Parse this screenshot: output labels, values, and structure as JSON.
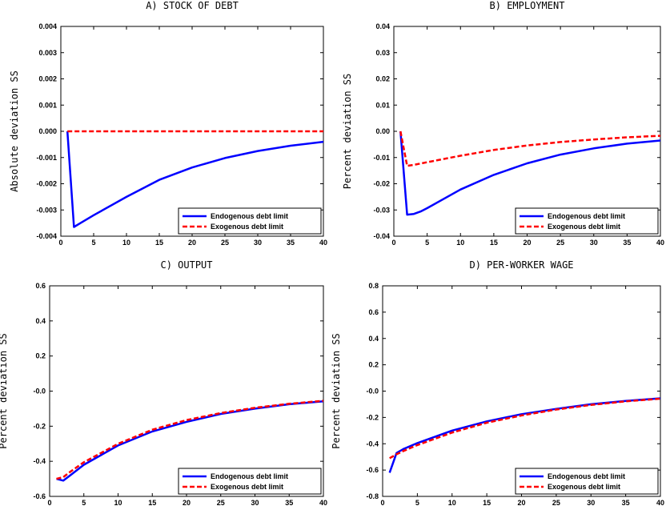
{
  "chart_data": [
    {
      "type": "line",
      "title": "A) STOCK OF DEBT",
      "ylabel": "Absolute deviation SS",
      "xlim": [
        0,
        40
      ],
      "ylim": [
        -0.004,
        0.004
      ],
      "xticks": [
        "0",
        "5",
        "10",
        "15",
        "20",
        "25",
        "30",
        "35",
        "40"
      ],
      "yticks": [
        "-0.004",
        "-0.003",
        "-0.002",
        "-0.001",
        "0.000",
        "0.001",
        "0.002",
        "0.003",
        "0.004"
      ],
      "legend": "bottom-right",
      "series": [
        {
          "name": "Endogenous debt limit",
          "color": "#0000ff",
          "dash": "solid",
          "x": [
            1,
            2,
            3,
            5,
            10,
            15,
            20,
            25,
            30,
            35,
            40
          ],
          "y": [
            0.0,
            -0.00365,
            -0.0035,
            -0.0032,
            -0.0025,
            -0.00185,
            -0.00138,
            -0.00102,
            -0.00075,
            -0.00055,
            -0.0004
          ]
        },
        {
          "name": "Exogenous debt limit",
          "color": "#ff0000",
          "dash": "dashed",
          "x": [
            1,
            40
          ],
          "y": [
            0.0,
            0.0
          ]
        }
      ]
    },
    {
      "type": "line",
      "title": "B) EMPLOYMENT",
      "ylabel": "Percent deviation SS",
      "xlim": [
        0,
        40
      ],
      "ylim": [
        -0.04,
        0.04
      ],
      "xticks": [
        "0",
        "5",
        "10",
        "15",
        "20",
        "25",
        "30",
        "35",
        "40"
      ],
      "yticks": [
        "-0.04",
        "-0.03",
        "-0.02",
        "-0.01",
        "0.00",
        "0.01",
        "0.02",
        "0.03",
        "0.04"
      ],
      "legend": "bottom-right",
      "series": [
        {
          "name": "Endogenous debt limit",
          "color": "#0000ff",
          "dash": "solid",
          "x": [
            1,
            2,
            3,
            4,
            5,
            10,
            15,
            20,
            25,
            30,
            35,
            40
          ],
          "y": [
            0.0,
            -0.0318,
            -0.0315,
            -0.0306,
            -0.0293,
            -0.0222,
            -0.0166,
            -0.0122,
            -0.0089,
            -0.0065,
            -0.0047,
            -0.0035
          ]
        },
        {
          "name": "Exogenous debt limit",
          "color": "#ff0000",
          "dash": "dashed",
          "x": [
            1,
            2,
            3,
            5,
            10,
            15,
            20,
            25,
            30,
            35,
            40
          ],
          "y": [
            0.0,
            -0.0132,
            -0.0128,
            -0.0118,
            -0.0093,
            -0.0071,
            -0.0054,
            -0.0041,
            -0.0031,
            -0.0023,
            -0.0017
          ]
        }
      ]
    },
    {
      "type": "line",
      "title": "C) OUTPUT",
      "ylabel": "Percent deviation SS",
      "xlim": [
        0,
        40
      ],
      "ylim": [
        -0.6,
        0.6
      ],
      "xticks": [
        "0",
        "5",
        "10",
        "15",
        "20",
        "25",
        "30",
        "35",
        "40"
      ],
      "yticks": [
        "-0.6",
        "-0.4",
        "-0.2",
        "-0.0",
        "0.2",
        "0.4",
        "0.6"
      ],
      "legend": "bottom-right",
      "series": [
        {
          "name": "Endogenous debt limit",
          "color": "#0000ff",
          "dash": "solid",
          "x": [
            1,
            2,
            3,
            5,
            10,
            15,
            20,
            25,
            30,
            35,
            40
          ],
          "y": [
            -0.5,
            -0.51,
            -0.48,
            -0.42,
            -0.31,
            -0.23,
            -0.175,
            -0.13,
            -0.1,
            -0.075,
            -0.058
          ]
        },
        {
          "name": "Exogenous debt limit",
          "color": "#ff0000",
          "dash": "dashed",
          "x": [
            1,
            2,
            3,
            5,
            10,
            15,
            20,
            25,
            30,
            35,
            40
          ],
          "y": [
            -0.5,
            -0.49,
            -0.46,
            -0.405,
            -0.3,
            -0.22,
            -0.165,
            -0.125,
            -0.095,
            -0.072,
            -0.055
          ]
        }
      ]
    },
    {
      "type": "line",
      "title": "D) PER-WORKER WAGE",
      "ylabel": "Percent deviation SS",
      "xlim": [
        0,
        40
      ],
      "ylim": [
        -0.8,
        0.8
      ],
      "xticks": [
        "0",
        "5",
        "10",
        "15",
        "20",
        "25",
        "30",
        "35",
        "40"
      ],
      "yticks": [
        "-0.8",
        "-0.6",
        "-0.4",
        "-0.2",
        "-0.0",
        "0.2",
        "0.4",
        "0.6",
        "0.8"
      ],
      "legend": "bottom-right",
      "series": [
        {
          "name": "Endogenous debt limit",
          "color": "#0000ff",
          "dash": "solid",
          "x": [
            1,
            2,
            3,
            5,
            10,
            15,
            20,
            25,
            30,
            35,
            40
          ],
          "y": [
            -0.62,
            -0.47,
            -0.44,
            -0.395,
            -0.3,
            -0.23,
            -0.175,
            -0.135,
            -0.1,
            -0.075,
            -0.055
          ]
        },
        {
          "name": "Exogenous debt limit",
          "color": "#ff0000",
          "dash": "dashed",
          "x": [
            1,
            2,
            3,
            5,
            10,
            15,
            20,
            25,
            30,
            35,
            40
          ],
          "y": [
            -0.51,
            -0.48,
            -0.455,
            -0.41,
            -0.315,
            -0.24,
            -0.185,
            -0.14,
            -0.105,
            -0.078,
            -0.058
          ]
        }
      ]
    }
  ]
}
